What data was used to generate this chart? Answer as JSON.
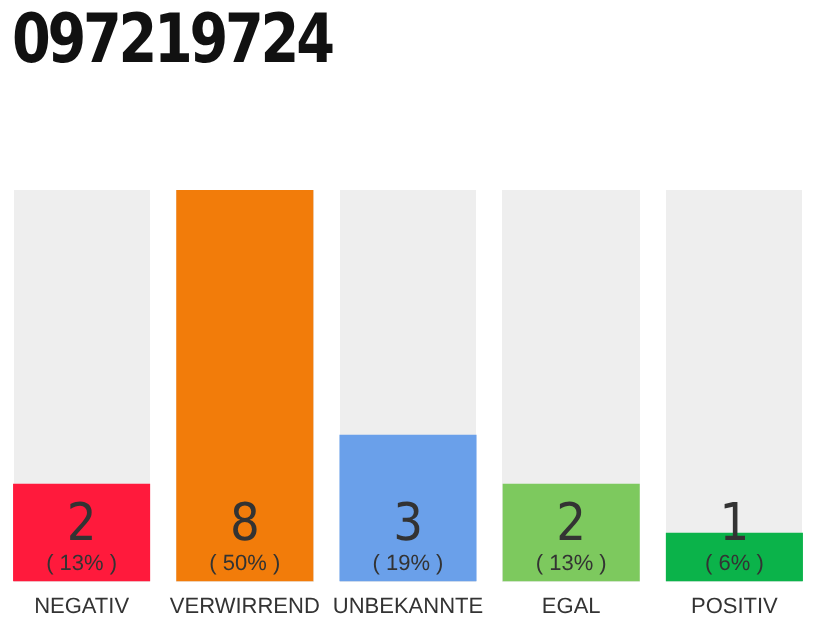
{
  "chart_data": {
    "type": "bar",
    "title": "097219724",
    "categories": [
      "NEGATIV",
      "VERWIRREND",
      "UNBEKANNTE",
      "EGAL",
      "POSITIV"
    ],
    "values": [
      2,
      8,
      3,
      2,
      1
    ],
    "colors": [
      "#ff1a3c",
      "#f27c0a",
      "#6aa0ea",
      "#7dc95e",
      "#0bb34a"
    ],
    "data_labels": true,
    "annotations": [
      "( 13% )",
      "( 50% )",
      "( 19% )",
      "( 13% )",
      "( 6% )"
    ],
    "grid": false,
    "legend": false
  }
}
